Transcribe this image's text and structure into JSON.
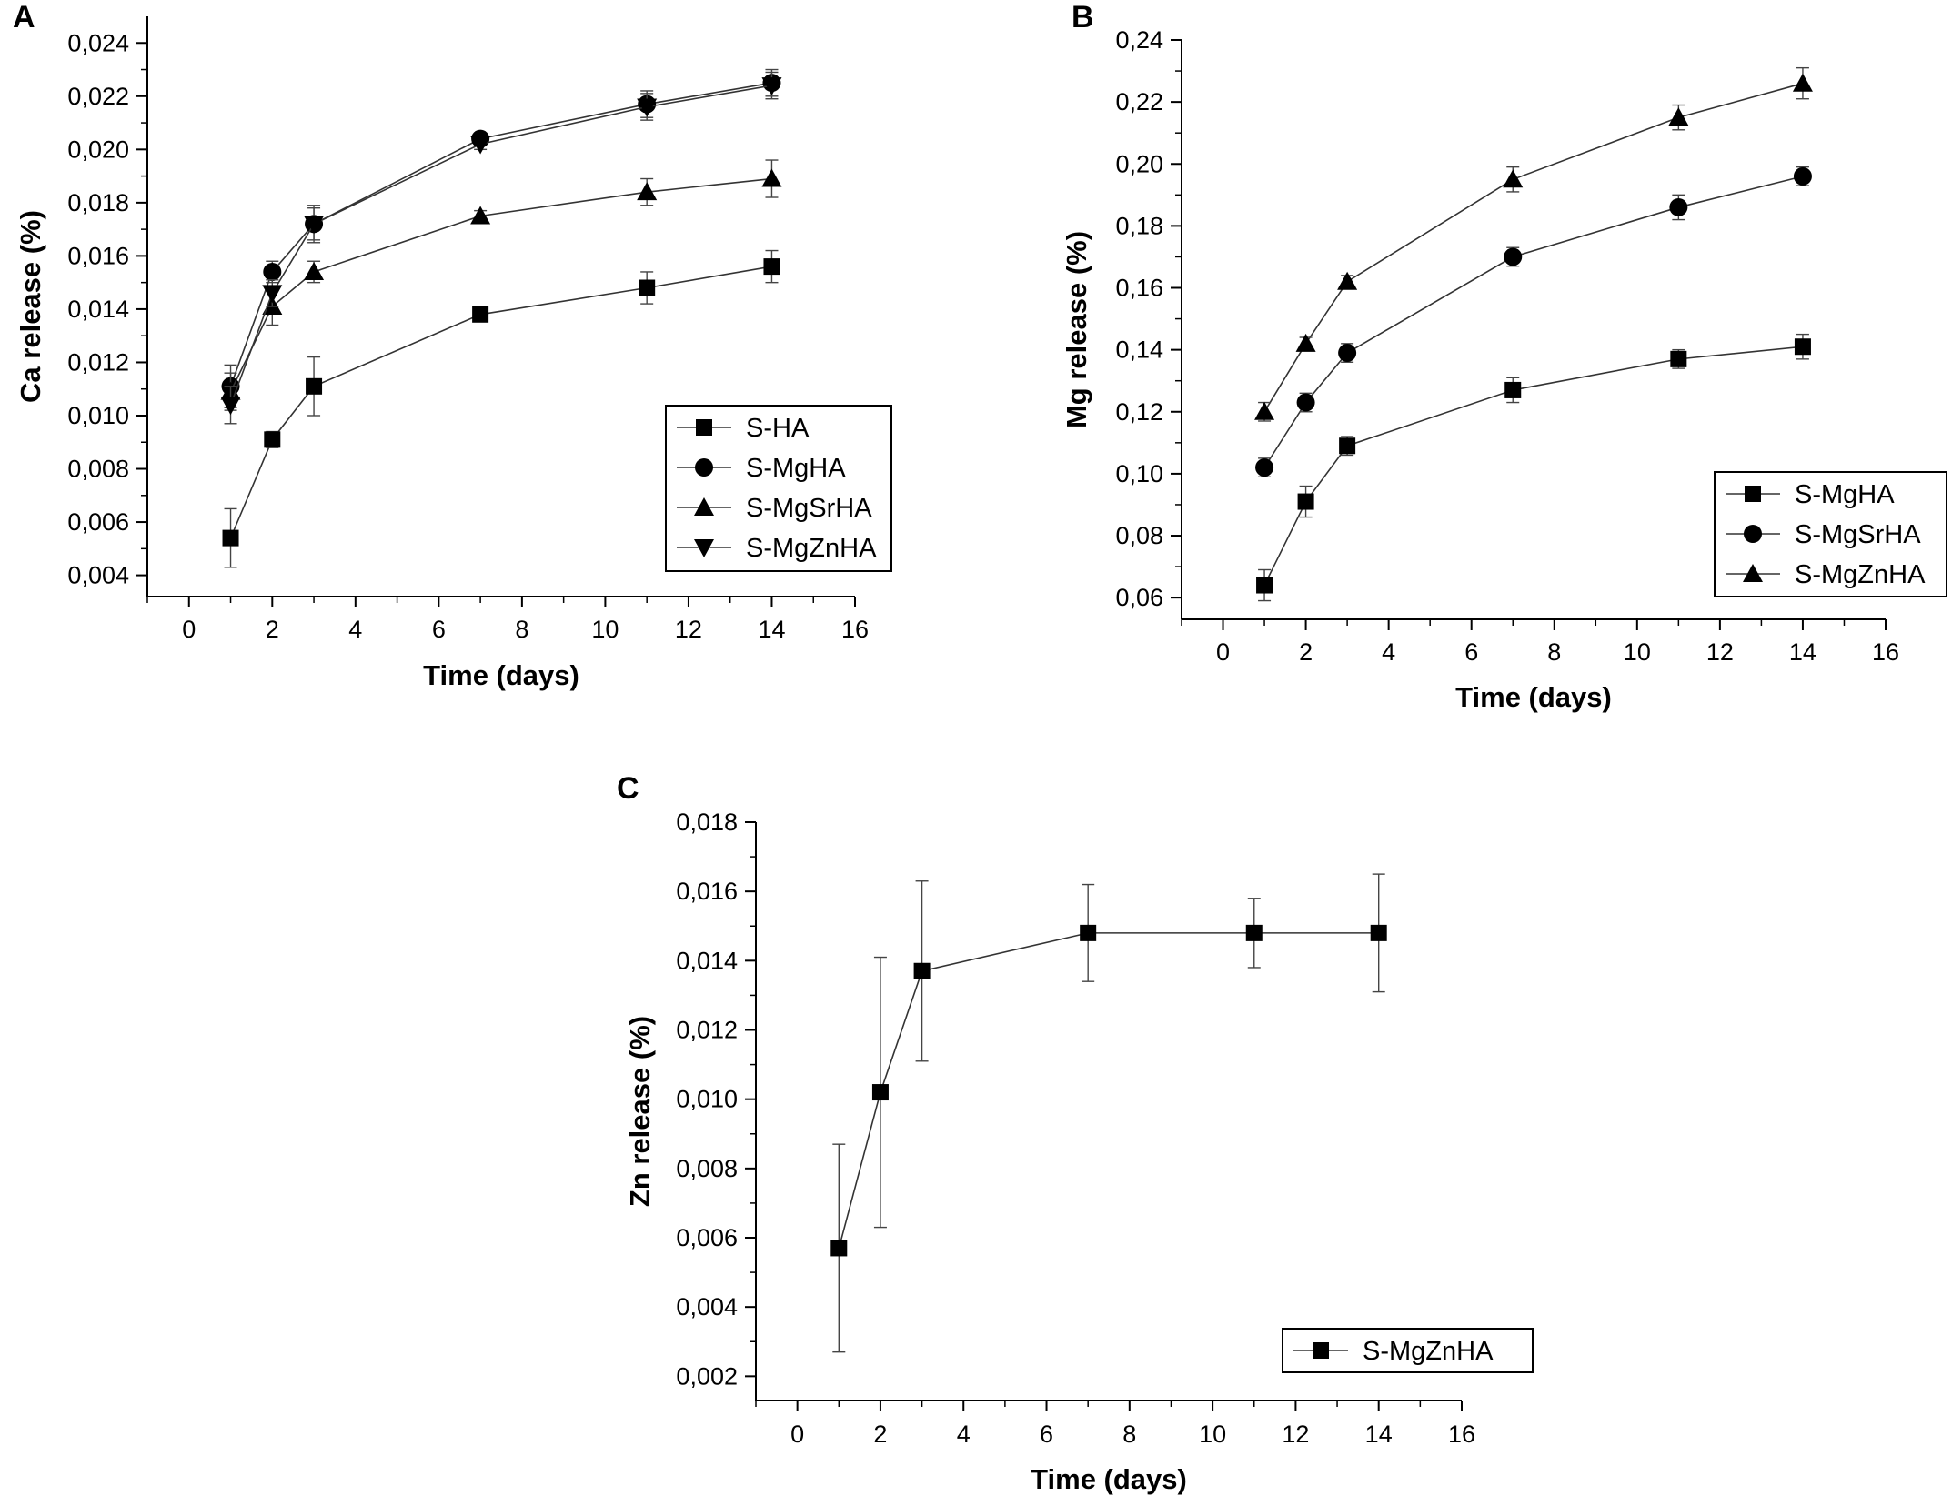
{
  "chart_data": [
    {
      "panel": "A",
      "type": "line",
      "xlabel": "Time (days)",
      "ylabel": "Ca release (%)",
      "xlim": [
        -1,
        16
      ],
      "ylim": [
        0.0032,
        0.025
      ],
      "xticks": [
        0,
        2,
        4,
        6,
        8,
        10,
        12,
        14,
        16
      ],
      "xtick_labels": [
        "0",
        "2",
        "4",
        "6",
        "8",
        "10",
        "12",
        "14",
        "16"
      ],
      "yticks": [
        0.004,
        0.006,
        0.008,
        0.01,
        0.012,
        0.014,
        0.016,
        0.018,
        0.02,
        0.022,
        0.024
      ],
      "ytick_labels": [
        "0,004",
        "0,006",
        "0,008",
        "0,010",
        "0,012",
        "0,014",
        "0,016",
        "0,018",
        "0,020",
        "0,022",
        "0,024"
      ],
      "legend_position": "bottom-right",
      "x": [
        1,
        2,
        3,
        7,
        11,
        14
      ],
      "series": [
        {
          "name": "S-HA",
          "marker": "square",
          "values": [
            0.0054,
            0.0091,
            0.0111,
            0.0138,
            0.0148,
            0.0156
          ],
          "errors": [
            0.0011,
            0.0003,
            0.0011,
            0.0002,
            0.0006,
            0.0006
          ]
        },
        {
          "name": "S-MgHA",
          "marker": "circle",
          "values": [
            0.0111,
            0.0154,
            0.0172,
            0.0204,
            0.0217,
            0.0225
          ],
          "errors": [
            0.0008,
            0.0004,
            0.0007,
            0.0002,
            0.0005,
            0.0005
          ]
        },
        {
          "name": "S-MgSrHA",
          "marker": "triangle-up",
          "values": [
            0.0109,
            0.0141,
            0.0154,
            0.0175,
            0.0184,
            0.0189
          ],
          "errors": [
            0.0007,
            0.0007,
            0.0004,
            0.0002,
            0.0005,
            0.0007
          ]
        },
        {
          "name": "S-MgZnHA",
          "marker": "triangle-down",
          "values": [
            0.0104,
            0.0146,
            0.0172,
            0.0202,
            0.0216,
            0.0224
          ],
          "errors": [
            0.0007,
            0.0005,
            0.0006,
            0.0002,
            0.0005,
            0.0005
          ]
        }
      ]
    },
    {
      "panel": "B",
      "type": "line",
      "xlabel": "Time (days)",
      "ylabel": "Mg release (%)",
      "xlim": [
        -1,
        16
      ],
      "ylim": [
        0.053,
        0.24
      ],
      "xticks": [
        0,
        2,
        4,
        6,
        8,
        10,
        12,
        14,
        16
      ],
      "xtick_labels": [
        "0",
        "2",
        "4",
        "6",
        "8",
        "10",
        "12",
        "14",
        "16"
      ],
      "yticks": [
        0.06,
        0.08,
        0.1,
        0.12,
        0.14,
        0.16,
        0.18,
        0.2,
        0.22,
        0.24
      ],
      "ytick_labels": [
        "0,06",
        "0,08",
        "0,10",
        "0,12",
        "0,14",
        "0,16",
        "0,18",
        "0,20",
        "0,22",
        "0,24"
      ],
      "legend_position": "bottom-right",
      "x": [
        1,
        2,
        3,
        7,
        11,
        14
      ],
      "series": [
        {
          "name": "S-MgHA",
          "marker": "square",
          "values": [
            0.064,
            0.091,
            0.109,
            0.127,
            0.137,
            0.141
          ],
          "errors": [
            0.005,
            0.005,
            0.003,
            0.004,
            0.003,
            0.004
          ]
        },
        {
          "name": "S-MgSrHA",
          "marker": "circle",
          "values": [
            0.102,
            0.123,
            0.139,
            0.17,
            0.186,
            0.196
          ],
          "errors": [
            0.003,
            0.003,
            0.003,
            0.003,
            0.004,
            0.003
          ]
        },
        {
          "name": "S-MgZnHA",
          "marker": "triangle-up",
          "values": [
            0.12,
            0.142,
            0.162,
            0.195,
            0.215,
            0.226
          ],
          "errors": [
            0.003,
            0.002,
            0.002,
            0.004,
            0.004,
            0.005
          ]
        }
      ]
    },
    {
      "panel": "C",
      "type": "line",
      "xlabel": "Time (days)",
      "ylabel": "Zn release (%)",
      "xlim": [
        -1,
        16
      ],
      "ylim": [
        0.0013,
        0.018
      ],
      "xticks": [
        0,
        2,
        4,
        6,
        8,
        10,
        12,
        14,
        16
      ],
      "xtick_labels": [
        "0",
        "2",
        "4",
        "6",
        "8",
        "10",
        "12",
        "14",
        "16"
      ],
      "yticks": [
        0.002,
        0.004,
        0.006,
        0.008,
        0.01,
        0.012,
        0.014,
        0.016,
        0.018
      ],
      "ytick_labels": [
        "0,002",
        "0,004",
        "0,006",
        "0,008",
        "0,010",
        "0,012",
        "0,014",
        "0,016",
        "0,018"
      ],
      "legend_position": "bottom-right",
      "x": [
        1,
        2,
        3,
        7,
        11,
        14
      ],
      "series": [
        {
          "name": "S-MgZnHA",
          "marker": "square",
          "values": [
            0.0057,
            0.0102,
            0.0137,
            0.0148,
            0.0148,
            0.0148
          ],
          "errors": [
            0.003,
            0.0039,
            0.0026,
            0.0014,
            0.001,
            0.0017
          ]
        }
      ]
    }
  ]
}
